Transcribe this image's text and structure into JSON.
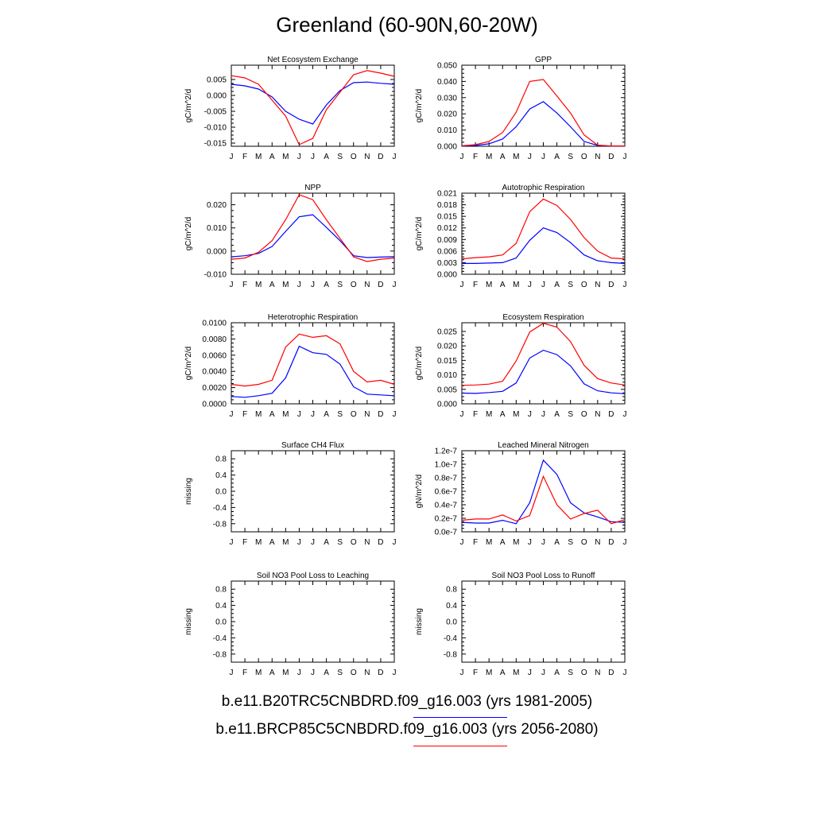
{
  "title": "Greenland (60-90N,60-20W)",
  "colors": {
    "case1": "#0000ff",
    "case2": "#ff0000"
  },
  "legend": [
    {
      "label": "b.e11.B20TRC5CNBDRD.f09_g16.003 (yrs 1981-2005)",
      "color": "#0000ff"
    },
    {
      "label": "b.e11.BRCP85C5CNBDRD.f09_g16.003 (yrs 2056-2080)",
      "color": "#ff0000"
    }
  ],
  "chart_data": [
    {
      "type": "line",
      "title": "Net Ecosystem Exchange",
      "ylabel": "gC/m^2/d",
      "x": [
        "J",
        "F",
        "M",
        "A",
        "M",
        "J",
        "J",
        "A",
        "S",
        "O",
        "N",
        "D",
        "J"
      ],
      "ylim": [
        -0.016,
        0.0095
      ],
      "yticks": [
        -0.015,
        -0.01,
        -0.005,
        0.0,
        0.005
      ],
      "ytick_labels": [
        "-0.015",
        "-0.010",
        "-0.005",
        "0.000",
        "0.005"
      ],
      "series": [
        {
          "values": [
            0.0035,
            0.003,
            0.002,
            -0.0005,
            -0.005,
            -0.0075,
            -0.009,
            -0.003,
            0.0015,
            0.004,
            0.0042,
            0.0038,
            0.0035
          ]
        },
        {
          "values": [
            0.0062,
            0.0055,
            0.0035,
            -0.0015,
            -0.0065,
            -0.0155,
            -0.0135,
            -0.0045,
            0.001,
            0.0065,
            0.0078,
            0.007,
            0.006
          ]
        }
      ]
    },
    {
      "type": "line",
      "title": "GPP",
      "ylabel": "gC/m^2/d",
      "x": [
        "J",
        "F",
        "M",
        "A",
        "M",
        "J",
        "J",
        "A",
        "S",
        "O",
        "N",
        "D",
        "J"
      ],
      "ylim": [
        0,
        0.05
      ],
      "yticks": [
        0.0,
        0.01,
        0.02,
        0.03,
        0.04,
        0.05
      ],
      "ytick_labels": [
        "0.000",
        "0.010",
        "0.020",
        "0.030",
        "0.040",
        "0.050"
      ],
      "series": [
        {
          "values": [
            0.0002,
            0.0005,
            0.0015,
            0.0045,
            0.012,
            0.023,
            0.0275,
            0.0205,
            0.012,
            0.003,
            0.0005,
            0.0001,
            0.0001
          ]
        },
        {
          "values": [
            0.0003,
            0.001,
            0.003,
            0.0085,
            0.021,
            0.04,
            0.0412,
            0.031,
            0.0205,
            0.007,
            0.0007,
            0.0002,
            0.0002
          ]
        }
      ]
    },
    {
      "type": "line",
      "title": "NPP",
      "ylabel": "gC/m^2/d",
      "x": [
        "J",
        "F",
        "M",
        "A",
        "M",
        "J",
        "J",
        "A",
        "S",
        "O",
        "N",
        "D",
        "J"
      ],
      "ylim": [
        -0.01,
        0.025
      ],
      "yticks": [
        -0.01,
        0.0,
        0.01,
        0.02
      ],
      "ytick_labels": [
        "-0.010",
        "0.000",
        "0.010",
        "0.020"
      ],
      "series": [
        {
          "values": [
            -0.0025,
            -0.002,
            -0.001,
            0.002,
            0.0085,
            0.0148,
            0.0157,
            0.0102,
            0.0045,
            -0.002,
            -0.0028,
            -0.0026,
            -0.0024
          ]
        },
        {
          "values": [
            -0.0035,
            -0.003,
            -0.0005,
            0.0045,
            0.0135,
            0.0243,
            0.0222,
            0.0135,
            0.0055,
            -0.0025,
            -0.0045,
            -0.0035,
            -0.003
          ]
        }
      ]
    },
    {
      "type": "line",
      "title": "Autotrophic Respiration",
      "ylabel": "gC/m^2/d",
      "x": [
        "J",
        "F",
        "M",
        "A",
        "M",
        "J",
        "J",
        "A",
        "S",
        "O",
        "N",
        "D",
        "J"
      ],
      "ylim": [
        0,
        0.021
      ],
      "yticks": [
        0.0,
        0.003,
        0.006,
        0.009,
        0.012,
        0.015,
        0.018,
        0.021
      ],
      "ytick_labels": [
        "0.000",
        "0.003",
        "0.006",
        "0.009",
        "0.012",
        "0.015",
        "0.018",
        "0.021"
      ],
      "series": [
        {
          "values": [
            0.0028,
            0.0028,
            0.0029,
            0.003,
            0.0042,
            0.0088,
            0.012,
            0.0108,
            0.0082,
            0.005,
            0.0035,
            0.003,
            0.0028
          ]
        },
        {
          "values": [
            0.004,
            0.0043,
            0.0045,
            0.005,
            0.008,
            0.0162,
            0.0195,
            0.0178,
            0.0142,
            0.0095,
            0.006,
            0.0042,
            0.004
          ]
        }
      ]
    },
    {
      "type": "line",
      "title": "Heterotrophic Respiration",
      "ylabel": "gC/m^2/d",
      "x": [
        "J",
        "F",
        "M",
        "A",
        "M",
        "J",
        "J",
        "A",
        "S",
        "O",
        "N",
        "D",
        "J"
      ],
      "ylim": [
        0,
        0.01
      ],
      "yticks": [
        0.0,
        0.002,
        0.004,
        0.006,
        0.008,
        0.01
      ],
      "ytick_labels": [
        "0.0000",
        "0.0020",
        "0.0040",
        "0.0060",
        "0.0080",
        "0.0100"
      ],
      "series": [
        {
          "values": [
            0.0009,
            0.0008,
            0.001,
            0.0013,
            0.0032,
            0.0071,
            0.0063,
            0.0061,
            0.0049,
            0.0021,
            0.0012,
            0.0011,
            0.001
          ]
        },
        {
          "values": [
            0.0024,
            0.0022,
            0.0024,
            0.0029,
            0.007,
            0.0086,
            0.0082,
            0.0084,
            0.0074,
            0.004,
            0.0027,
            0.0029,
            0.0024
          ]
        }
      ]
    },
    {
      "type": "line",
      "title": "Ecosystem Respiration",
      "ylabel": "gC/m^2/d",
      "x": [
        "J",
        "F",
        "M",
        "A",
        "M",
        "J",
        "J",
        "A",
        "S",
        "O",
        "N",
        "D",
        "J"
      ],
      "ylim": [
        0,
        0.028
      ],
      "yticks": [
        0.0,
        0.005,
        0.01,
        0.015,
        0.02,
        0.025
      ],
      "ytick_labels": [
        "0.000",
        "0.005",
        "0.010",
        "0.015",
        "0.020",
        "0.025"
      ],
      "series": [
        {
          "values": [
            0.0037,
            0.0036,
            0.0039,
            0.0043,
            0.0072,
            0.0158,
            0.0185,
            0.017,
            0.0131,
            0.0069,
            0.0045,
            0.0038,
            0.0035
          ]
        },
        {
          "values": [
            0.0064,
            0.0065,
            0.0068,
            0.0078,
            0.0148,
            0.0248,
            0.0278,
            0.0265,
            0.0215,
            0.0133,
            0.0087,
            0.0072,
            0.0065
          ]
        }
      ]
    },
    {
      "type": "line",
      "title": "Surface CH4 Flux",
      "ylabel": "missing",
      "x": [
        "J",
        "F",
        "M",
        "A",
        "M",
        "J",
        "J",
        "A",
        "S",
        "O",
        "N",
        "D",
        "J"
      ],
      "ylim": [
        -1,
        1
      ],
      "yticks": [
        -0.8,
        -0.4,
        0.0,
        0.4,
        0.8
      ],
      "ytick_labels": [
        "-0.8",
        "-0.4",
        "0.0",
        "0.4",
        "0.8"
      ],
      "series": []
    },
    {
      "type": "line",
      "title": "Leached Mineral Nitrogen",
      "ylabel": "gN/m^2/d",
      "x": [
        "J",
        "F",
        "M",
        "A",
        "M",
        "J",
        "J",
        "A",
        "S",
        "O",
        "N",
        "D",
        "J"
      ],
      "ylim": [
        0,
        1.2e-07
      ],
      "yticks": [
        0,
        2e-08,
        4e-08,
        6e-08,
        8e-08,
        1e-07,
        1.2e-07
      ],
      "ytick_labels": [
        "0.0e-7",
        "0.2e-7",
        "0.4e-7",
        "0.6e-7",
        "0.8e-7",
        "1.0e-7",
        "1.2e-7"
      ],
      "series": [
        {
          "values": [
            1.4e-08,
            1.3e-08,
            1.3e-08,
            1.7e-08,
            1.2e-08,
            4.3e-08,
            1.06e-07,
            8.5e-08,
            4.3e-08,
            2.8e-08,
            2.2e-08,
            1.5e-08,
            1.4e-08
          ]
        },
        {
          "values": [
            1.7e-08,
            1.9e-08,
            1.9e-08,
            2.5e-08,
            1.6e-08,
            2.4e-08,
            8.2e-08,
            4e-08,
            1.9e-08,
            2.7e-08,
            3.2e-08,
            1.2e-08,
            1.8e-08
          ]
        }
      ]
    },
    {
      "type": "line",
      "title": "Soil NO3 Pool Loss to Leaching",
      "ylabel": "missing",
      "x": [
        "J",
        "F",
        "M",
        "A",
        "M",
        "J",
        "J",
        "A",
        "S",
        "O",
        "N",
        "D",
        "J"
      ],
      "ylim": [
        -1,
        1
      ],
      "yticks": [
        -0.8,
        -0.4,
        0.0,
        0.4,
        0.8
      ],
      "ytick_labels": [
        "-0.8",
        "-0.4",
        "0.0",
        "0.4",
        "0.8"
      ],
      "series": []
    },
    {
      "type": "line",
      "title": "Soil NO3 Pool Loss to Runoff",
      "ylabel": "missing",
      "x": [
        "J",
        "F",
        "M",
        "A",
        "M",
        "J",
        "J",
        "A",
        "S",
        "O",
        "N",
        "D",
        "J"
      ],
      "ylim": [
        -1,
        1
      ],
      "yticks": [
        -0.8,
        -0.4,
        0.0,
        0.4,
        0.8
      ],
      "ytick_labels": [
        "-0.8",
        "-0.4",
        "0.0",
        "0.4",
        "0.8"
      ],
      "series": []
    }
  ]
}
